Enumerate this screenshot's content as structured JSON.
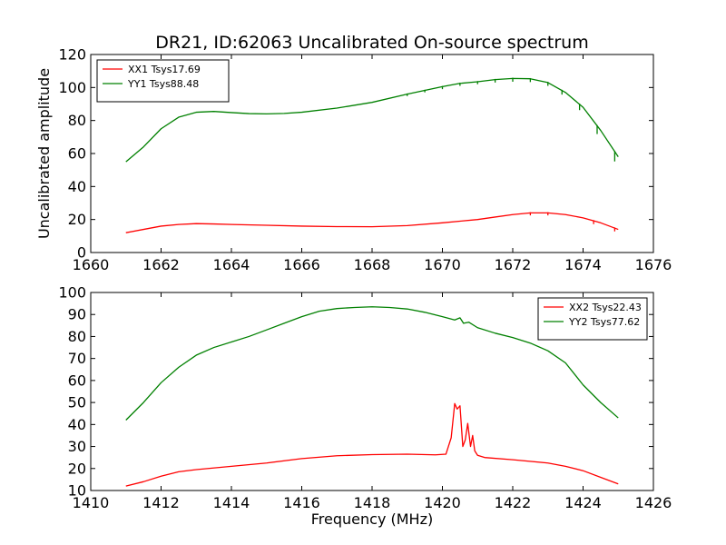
{
  "title": "DR21, ID:62063 Uncalibrated On-source spectrum",
  "colors": {
    "red": "#ff0000",
    "green": "#008000",
    "axis": "#000000",
    "background": "#ffffff"
  },
  "chart_data": [
    {
      "type": "line",
      "title": "DR21, ID:62063 Uncalibrated On-source spectrum",
      "xlabel": "",
      "ylabel": "Uncalibrated amplitude",
      "xlim": [
        1660,
        1676
      ],
      "ylim": [
        0,
        120
      ],
      "xticks": [
        1660,
        1662,
        1664,
        1666,
        1668,
        1670,
        1672,
        1674,
        1676
      ],
      "yticks": [
        0,
        20,
        40,
        60,
        80,
        100,
        120
      ],
      "grid": false,
      "legend_position": "top-left",
      "series": [
        {
          "name": "XX1 Tsys17.69",
          "color": "#ff0000",
          "x": [
            1661,
            1661.5,
            1662,
            1662.5,
            1663,
            1663.5,
            1664,
            1665,
            1666,
            1667,
            1668,
            1669,
            1670,
            1670.5,
            1671,
            1671.5,
            1672,
            1672.5,
            1673,
            1673.5,
            1674,
            1674.5,
            1675
          ],
          "y": [
            12,
            14,
            16,
            17,
            17.5,
            17.3,
            17,
            16.5,
            16,
            15.7,
            15.6,
            16.3,
            18,
            19,
            20,
            21.5,
            23,
            24,
            24,
            23,
            21,
            18,
            14
          ]
        },
        {
          "name": "YY1 Tsys88.48",
          "color": "#008000",
          "x": [
            1661,
            1661.5,
            1662,
            1662.5,
            1663,
            1663.5,
            1664,
            1664.5,
            1665,
            1665.5,
            1666,
            1667,
            1668,
            1669,
            1670,
            1670.5,
            1671,
            1671.5,
            1672,
            1672.5,
            1673,
            1673.5,
            1674,
            1674.5,
            1675
          ],
          "y": [
            55,
            64,
            75,
            82,
            85,
            85.5,
            84.8,
            84.2,
            84,
            84.3,
            85,
            87.5,
            91,
            96,
            100.5,
            102.5,
            103.5,
            104.8,
            105.5,
            105.3,
            103,
            97,
            88,
            74,
            58
          ]
        }
      ],
      "spikes": [
        {
          "series": 0,
          "x": [
            1672.5,
            1673,
            1674.3,
            1674.9
          ],
          "depth": [
            1.5,
            1.5,
            2,
            2
          ]
        },
        {
          "series": 1,
          "x": [
            1669,
            1669.5,
            1670,
            1670.5,
            1671,
            1671.5,
            1672,
            1672.5,
            1673,
            1673.4,
            1673.9,
            1674.4,
            1674.9
          ],
          "depth": [
            1.2,
            1.2,
            1.5,
            1.5,
            1.5,
            1.8,
            2,
            2,
            2,
            2.5,
            3.5,
            5,
            6
          ]
        }
      ]
    },
    {
      "type": "line",
      "title": "",
      "xlabel": "Frequency (MHz)",
      "ylabel": "",
      "xlim": [
        1410,
        1426
      ],
      "ylim": [
        10,
        100
      ],
      "xticks": [
        1410,
        1412,
        1414,
        1416,
        1418,
        1420,
        1422,
        1424,
        1426
      ],
      "yticks": [
        10,
        20,
        30,
        40,
        50,
        60,
        70,
        80,
        90,
        100
      ],
      "grid": false,
      "legend_position": "top-right",
      "series": [
        {
          "name": "XX2 Tsys22.43",
          "color": "#ff0000",
          "x": [
            1411,
            1411.5,
            1412,
            1412.5,
            1413,
            1414,
            1415,
            1416,
            1417,
            1418,
            1419,
            1419.8,
            1420.1,
            1420.25,
            1420.35,
            1420.42,
            1420.5,
            1420.58,
            1420.65,
            1420.72,
            1420.8,
            1420.86,
            1420.92,
            1421.0,
            1421.2,
            1422,
            1423,
            1423.5,
            1424,
            1424.5,
            1425
          ],
          "y": [
            12,
            14,
            16.5,
            18.5,
            19.5,
            21,
            22.5,
            24.5,
            25.8,
            26.3,
            26.5,
            26.2,
            26.5,
            34,
            49.5,
            47,
            48.5,
            30,
            33,
            40.5,
            30,
            35,
            28,
            26,
            25,
            24,
            22.5,
            21,
            19,
            16,
            13
          ]
        },
        {
          "name": "YY2 Tsys77.62",
          "color": "#008000",
          "x": [
            1411,
            1411.5,
            1412,
            1412.5,
            1413,
            1413.5,
            1414,
            1414.5,
            1415,
            1415.5,
            1416,
            1416.5,
            1417,
            1417.5,
            1418,
            1418.5,
            1419,
            1419.5,
            1420,
            1420.35,
            1420.5,
            1420.6,
            1420.75,
            1421,
            1421.5,
            1422,
            1422.5,
            1423,
            1423.5,
            1424,
            1424.5,
            1425
          ],
          "y": [
            42,
            50,
            59,
            66,
            71.5,
            75,
            77.5,
            80,
            83,
            86,
            89,
            91.5,
            92.7,
            93.2,
            93.5,
            93.2,
            92.5,
            91,
            89,
            87.5,
            88.5,
            86,
            86.5,
            84,
            81.5,
            79.5,
            77,
            73.5,
            68,
            58,
            50,
            43
          ]
        }
      ]
    }
  ]
}
